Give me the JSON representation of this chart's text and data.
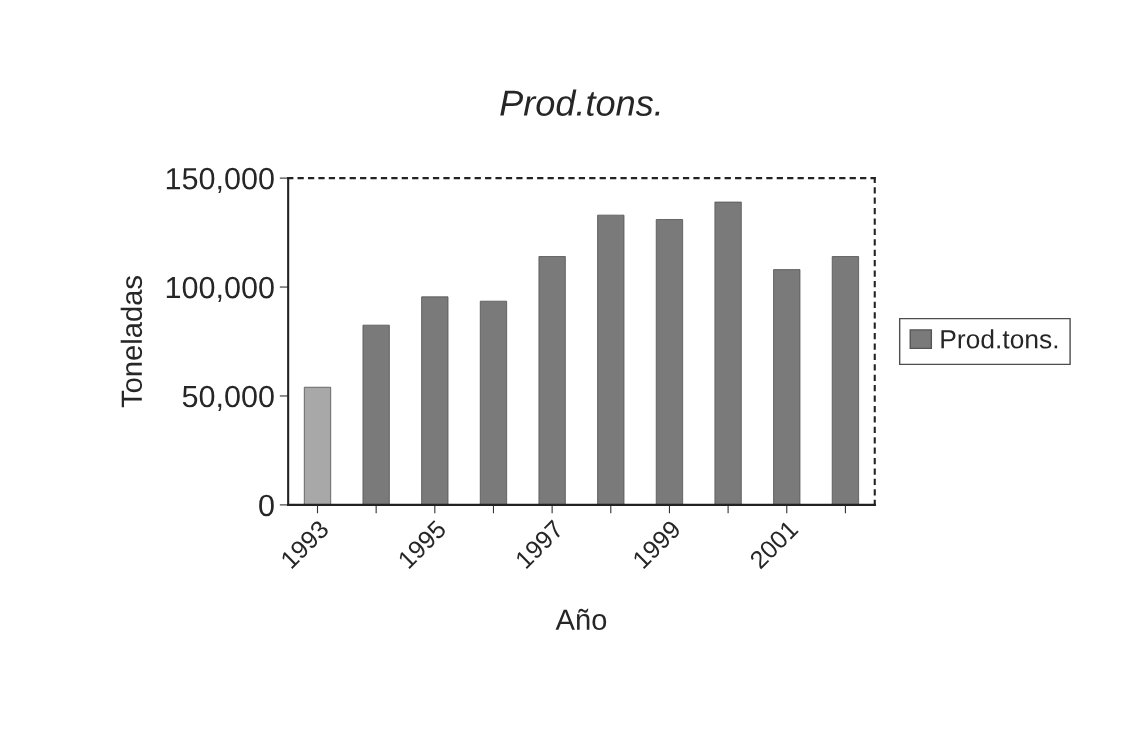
{
  "chart_data": {
    "type": "bar",
    "title": "Prod.tons.",
    "xlabel": "Año",
    "ylabel": "Toneladas",
    "categories": [
      "1993",
      null,
      "1995",
      null,
      "1997",
      null,
      "1999",
      null,
      "2001",
      null
    ],
    "series": [
      {
        "name": "Prod.tons.",
        "colors": [
          "#a8a8a8",
          "#7a7a7a",
          "#7a7a7a",
          "#7a7a7a",
          "#7a7a7a",
          "#7a7a7a",
          "#7a7a7a",
          "#7a7a7a",
          "#7a7a7a",
          "#7a7a7a"
        ],
        "values": [
          54000,
          82500,
          95500,
          93500,
          114000,
          133000,
          131000,
          139000,
          108000,
          114000
        ]
      }
    ],
    "ylim": [
      0,
      150000
    ],
    "yticks": [
      {
        "value": 0,
        "label": "0"
      },
      {
        "value": 50000,
        "label": "50,000"
      },
      {
        "value": 100000,
        "label": "100,000"
      },
      {
        "value": 150000,
        "label": "150,000"
      }
    ],
    "grid": false,
    "legend": "right"
  }
}
